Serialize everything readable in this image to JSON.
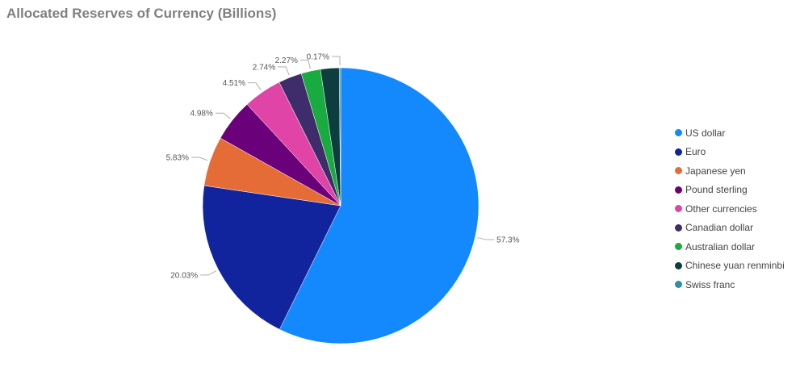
{
  "chart_data": {
    "type": "pie",
    "title": "Allocated Reserves of Currency (Billions)",
    "legend_position": "right",
    "slices": [
      {
        "name": "US dollar",
        "value": 57.3,
        "label": "57.3%",
        "color": "#1389fd"
      },
      {
        "name": "Euro",
        "value": 20.03,
        "label": "20.03%",
        "color": "#12239e"
      },
      {
        "name": "Japanese yen",
        "value": 5.83,
        "label": "5.83%",
        "color": "#e66c37"
      },
      {
        "name": "Pound sterling",
        "value": 4.98,
        "label": "4.98%",
        "color": "#6b007b"
      },
      {
        "name": "Other currencies",
        "value": 4.51,
        "label": "4.51%",
        "color": "#e044a7"
      },
      {
        "name": "Canadian dollar",
        "value": 2.74,
        "label": "2.74%",
        "color": "#3f2c6a"
      },
      {
        "name": "Australian dollar",
        "value": 2.27,
        "label": "2.27%",
        "color": "#1aab40"
      },
      {
        "name": "Chinese yuan renminbi",
        "value": 2.17,
        "label": "",
        "color": "#0e3d3f"
      },
      {
        "name": "Swiss franc",
        "value": 0.17,
        "label": "0.17%",
        "color": "#2e8fa6"
      }
    ]
  }
}
